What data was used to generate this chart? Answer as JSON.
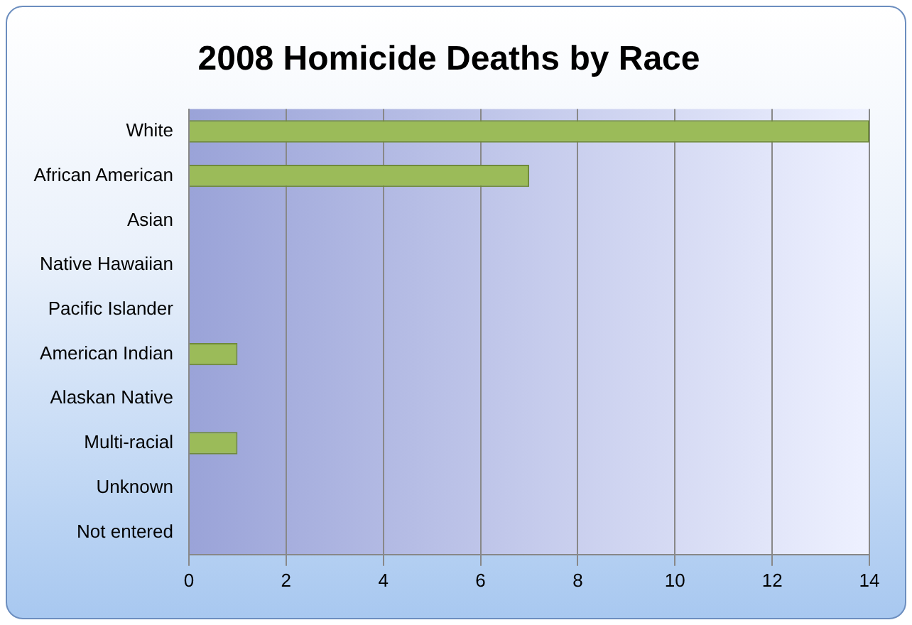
{
  "chart_data": {
    "type": "bar",
    "orientation": "horizontal",
    "title": "2008 Homicide Deaths by Race",
    "categories": [
      "White",
      "African American",
      "Asian",
      "Native Hawaiian",
      "Pacific Islander",
      "American Indian",
      "Alaskan Native",
      "Multi-racial",
      "Unknown",
      "Not entered"
    ],
    "values": [
      14,
      7,
      0,
      0,
      0,
      1,
      0,
      1,
      0,
      0
    ],
    "color": "#9bbb59",
    "xlim": [
      0,
      14
    ],
    "xticks": [
      0,
      2,
      4,
      6,
      8,
      10,
      12,
      14
    ],
    "grid": "x",
    "legend": false
  }
}
